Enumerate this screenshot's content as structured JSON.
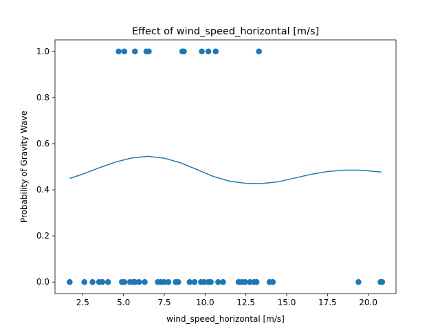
{
  "chart_data": {
    "type": "scatter",
    "title": "Effect of wind_speed_horizontal [m/s]",
    "xlabel": "wind_speed_horizontal [m/s]",
    "ylabel": "Probability of Gravity Wave",
    "xlim": [
      0.8,
      21.7
    ],
    "ylim": [
      -0.05,
      1.05
    ],
    "x_ticks": [
      2.5,
      5.0,
      7.5,
      10.0,
      12.5,
      15.0,
      17.5,
      20.0
    ],
    "x_tick_labels": [
      "2.5",
      "5.0",
      "7.5",
      "10.0",
      "12.5",
      "15.0",
      "17.5",
      "20.0"
    ],
    "y_ticks": [
      0.0,
      0.2,
      0.4,
      0.6,
      0.8,
      1.0
    ],
    "y_tick_labels": [
      "0.0",
      "0.2",
      "0.4",
      "0.6",
      "0.8",
      "1.0"
    ],
    "grid": false,
    "color": "#1f77b4",
    "series": [
      {
        "kind": "scatter",
        "points": [
          [
            4.7,
            1
          ],
          [
            5.05,
            1
          ],
          [
            5.7,
            1
          ],
          [
            6.4,
            1
          ],
          [
            6.55,
            1
          ],
          [
            8.6,
            1
          ],
          [
            8.7,
            1
          ],
          [
            9.8,
            1
          ],
          [
            10.2,
            1
          ],
          [
            10.65,
            1
          ],
          [
            13.3,
            1
          ],
          [
            1.7,
            0
          ],
          [
            2.6,
            0
          ],
          [
            3.1,
            0
          ],
          [
            3.5,
            0
          ],
          [
            3.7,
            0
          ],
          [
            4.05,
            0
          ],
          [
            4.9,
            0
          ],
          [
            5.05,
            0
          ],
          [
            5.4,
            0
          ],
          [
            5.6,
            0
          ],
          [
            5.7,
            0
          ],
          [
            5.95,
            0
          ],
          [
            6.3,
            0
          ],
          [
            7.1,
            0
          ],
          [
            7.3,
            0
          ],
          [
            7.5,
            0
          ],
          [
            7.75,
            0
          ],
          [
            8.2,
            0
          ],
          [
            8.35,
            0
          ],
          [
            9.05,
            0
          ],
          [
            9.35,
            0
          ],
          [
            9.75,
            0
          ],
          [
            9.95,
            0
          ],
          [
            10.2,
            0
          ],
          [
            10.35,
            0
          ],
          [
            10.8,
            0
          ],
          [
            11.1,
            0
          ],
          [
            12.05,
            0
          ],
          [
            12.25,
            0
          ],
          [
            12.45,
            0
          ],
          [
            12.75,
            0
          ],
          [
            13.0,
            0
          ],
          [
            13.15,
            0
          ],
          [
            13.95,
            0
          ],
          [
            14.15,
            0
          ],
          [
            19.4,
            0
          ],
          [
            20.75,
            0
          ],
          [
            20.85,
            0
          ]
        ]
      },
      {
        "kind": "line",
        "points": [
          [
            1.7,
            0.449
          ],
          [
            2.5,
            0.468
          ],
          [
            3.5,
            0.495
          ],
          [
            4.5,
            0.52
          ],
          [
            5.5,
            0.538
          ],
          [
            6.5,
            0.545
          ],
          [
            7.5,
            0.537
          ],
          [
            8.5,
            0.517
          ],
          [
            9.5,
            0.488
          ],
          [
            10.5,
            0.458
          ],
          [
            11.5,
            0.437
          ],
          [
            12.5,
            0.428
          ],
          [
            13.5,
            0.427
          ],
          [
            14.5,
            0.435
          ],
          [
            15.5,
            0.451
          ],
          [
            16.5,
            0.467
          ],
          [
            17.5,
            0.479
          ],
          [
            18.5,
            0.485
          ],
          [
            19.5,
            0.485
          ],
          [
            20.0,
            0.482
          ],
          [
            20.8,
            0.477
          ]
        ]
      }
    ]
  }
}
